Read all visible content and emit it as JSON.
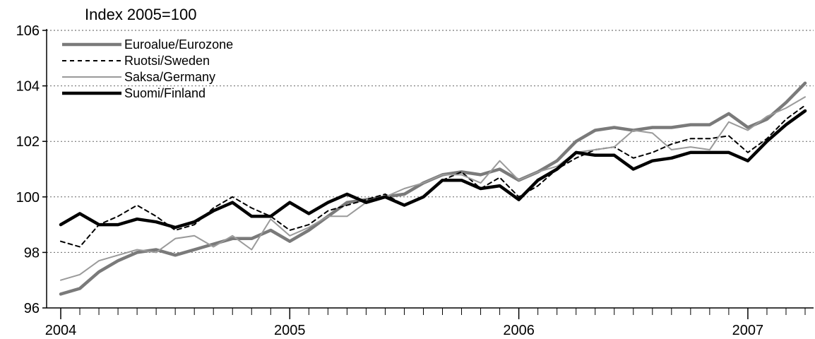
{
  "chart_data": {
    "type": "line",
    "title": "",
    "ylabel": "Index 2005=100",
    "xlabel": "",
    "ylim": [
      96,
      106
    ],
    "yticks": [
      96,
      98,
      100,
      102,
      104,
      106
    ],
    "xlim": [
      0,
      39
    ],
    "xticks": [
      {
        "label": "2004",
        "pos": 0
      },
      {
        "label": "2005",
        "pos": 12
      },
      {
        "label": "2006",
        "pos": 24
      },
      {
        "label": "2007",
        "pos": 36
      }
    ],
    "x_period": "monthly, Jan 2004 - Apr 2007",
    "grid": "horizontal dotted",
    "legend_position": "top-left",
    "series": [
      {
        "name": "Euroalue/Eurozone",
        "color": "#7a7a7a",
        "style": "solid-thick",
        "values": [
          96.5,
          96.7,
          97.3,
          97.7,
          98.0,
          98.1,
          97.9,
          98.1,
          98.3,
          98.5,
          98.5,
          98.8,
          98.4,
          98.8,
          99.3,
          99.8,
          99.9,
          100.0,
          100.1,
          100.5,
          100.8,
          100.9,
          100.8,
          101.0,
          100.6,
          100.9,
          101.3,
          102.0,
          102.4,
          102.5,
          102.4,
          102.5,
          102.5,
          102.6,
          102.6,
          103.0,
          102.5,
          102.8,
          103.4,
          104.1
        ]
      },
      {
        "name": "Ruotsi/Sweden",
        "color": "#000000",
        "style": "dashed",
        "values": [
          98.4,
          98.2,
          99.0,
          99.3,
          99.7,
          99.3,
          98.8,
          99.0,
          99.6,
          100.0,
          99.6,
          99.3,
          98.8,
          99.0,
          99.5,
          99.7,
          99.9,
          100.1,
          99.7,
          100.0,
          100.6,
          100.9,
          100.3,
          100.7,
          100.0,
          100.4,
          101.0,
          101.4,
          101.7,
          101.8,
          101.4,
          101.6,
          101.9,
          102.1,
          102.1,
          102.2,
          101.6,
          102.1,
          102.8,
          103.3
        ]
      },
      {
        "name": "Saksa/Germany",
        "color": "#9a9a9a",
        "style": "solid-thin",
        "values": [
          97.0,
          97.2,
          97.7,
          97.9,
          98.1,
          98.0,
          98.5,
          98.6,
          98.2,
          98.6,
          98.1,
          99.2,
          98.6,
          98.9,
          99.3,
          99.3,
          99.8,
          100.0,
          100.3,
          100.5,
          100.8,
          100.8,
          100.5,
          101.3,
          100.6,
          100.9,
          101.1,
          101.6,
          101.7,
          101.8,
          102.4,
          102.3,
          101.7,
          101.8,
          101.7,
          102.7,
          102.4,
          102.9,
          103.2,
          103.6
        ]
      },
      {
        "name": "Suomi/Finland",
        "color": "#000000",
        "style": "solid-bold",
        "values": [
          99.0,
          99.4,
          99.0,
          99.0,
          99.2,
          99.1,
          98.9,
          99.1,
          99.5,
          99.8,
          99.3,
          99.3,
          99.8,
          99.4,
          99.8,
          100.1,
          99.8,
          100.0,
          99.7,
          100.0,
          100.6,
          100.6,
          100.3,
          100.4,
          99.9,
          100.6,
          101.0,
          101.6,
          101.5,
          101.5,
          101.0,
          101.3,
          101.4,
          101.6,
          101.6,
          101.6,
          101.3,
          102.0,
          102.6,
          103.1
        ]
      }
    ]
  }
}
